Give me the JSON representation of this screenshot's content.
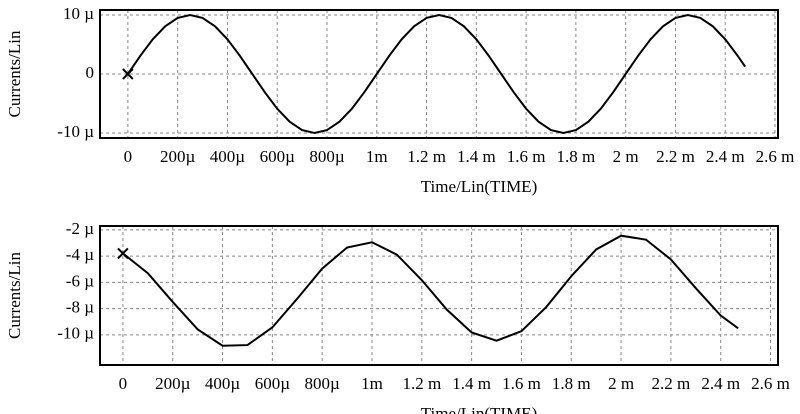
{
  "chart_data": [
    {
      "type": "line",
      "ylabel": "Currents/Lin",
      "xlabel": "Time/Lin(TIME)",
      "color": "#000000",
      "grid": true,
      "xlim": [
        -0.000112,
        0.002612
      ],
      "ylim": [
        -1.085e-05,
        1.085e-05
      ],
      "xticks": [
        0,
        {
          "value": 0.0002,
          "label": "200µ"
        },
        {
          "value": 0.0004,
          "label": "400µ"
        },
        {
          "value": 0.0006,
          "label": "600µ"
        },
        {
          "value": 0.0008,
          "label": "800µ"
        },
        {
          "value": 0.001,
          "label": "1m"
        },
        {
          "value": 0.0012,
          "label": "1.2 m"
        },
        {
          "value": 0.0014,
          "label": "1.4 m"
        },
        {
          "value": 0.0016,
          "label": "1.6 m"
        },
        {
          "value": 0.0018,
          "label": "1.8 m"
        },
        {
          "value": 0.002,
          "label": "2 m"
        },
        {
          "value": 0.0022,
          "label": "2.2 m"
        },
        {
          "value": 0.0024,
          "label": "2.4 m"
        },
        {
          "value": 0.0026,
          "label": "2.6 m"
        }
      ],
      "yticks": [
        {
          "value": 1e-05,
          "label": "10 µ"
        },
        0,
        {
          "value": -1e-05,
          "label": "-10 µ"
        }
      ],
      "x": [
        0,
        5e-05,
        0.0001,
        0.00015,
        0.0002,
        0.00025,
        0.0003,
        0.00035,
        0.0004,
        0.00045,
        0.0005,
        0.00055,
        0.0006,
        0.00065,
        0.0007,
        0.00075,
        0.0008,
        0.00085,
        0.0009,
        0.00095,
        0.001,
        0.00105,
        0.0011,
        0.00115,
        0.0012,
        0.00125,
        0.0013,
        0.00135,
        0.0014,
        0.00145,
        0.0015,
        0.00155,
        0.0016,
        0.00165,
        0.0017,
        0.00175,
        0.0018,
        0.00185,
        0.0019,
        0.00195,
        0.002,
        0.00205,
        0.0021,
        0.00215,
        0.0022,
        0.00225,
        0.0023,
        0.00235,
        0.0024,
        0.00245,
        0.00248
      ],
      "values": [
        0,
        3.09e-06,
        5.88e-06,
        8.09e-06,
        9.51e-06,
        1e-05,
        9.51e-06,
        8.09e-06,
        5.88e-06,
        3.09e-06,
        0,
        -3.09e-06,
        -5.88e-06,
        -8.09e-06,
        -9.51e-06,
        -1e-05,
        -9.51e-06,
        -8.09e-06,
        -5.88e-06,
        -3.09e-06,
        0,
        3.09e-06,
        5.88e-06,
        8.09e-06,
        9.51e-06,
        1e-05,
        9.51e-06,
        8.09e-06,
        5.88e-06,
        3.09e-06,
        0,
        -3.09e-06,
        -5.88e-06,
        -8.09e-06,
        -9.51e-06,
        -1e-05,
        -9.51e-06,
        -8.09e-06,
        -5.88e-06,
        -3.09e-06,
        0,
        3.09e-06,
        5.88e-06,
        8.09e-06,
        9.51e-06,
        1e-05,
        9.51e-06,
        8.09e-06,
        5.88e-06,
        3.09e-06,
        1.25e-06
      ]
    },
    {
      "type": "line",
      "ylabel": "Currents/Lin",
      "xlabel": "Time/Lin(TIME)",
      "color": "#000000",
      "grid": true,
      "xlim": [
        -9.2e-05,
        0.00263
      ],
      "ylim": [
        -1.23e-05,
        -1.7e-06
      ],
      "xticks": [
        0,
        {
          "value": 0.0002,
          "label": "200µ"
        },
        {
          "value": 0.0004,
          "label": "400µ"
        },
        {
          "value": 0.0006,
          "label": "600µ"
        },
        {
          "value": 0.0008,
          "label": "800µ"
        },
        {
          "value": 0.001,
          "label": "1m"
        },
        {
          "value": 0.0012,
          "label": "1.2 m"
        },
        {
          "value": 0.0014,
          "label": "1.4 m"
        },
        {
          "value": 0.0016,
          "label": "1.6 m"
        },
        {
          "value": 0.0018,
          "label": "1.8 m"
        },
        {
          "value": 0.002,
          "label": "2 m"
        },
        {
          "value": 0.0022,
          "label": "2.2 m"
        },
        {
          "value": 0.0024,
          "label": "2.4 m"
        },
        {
          "value": 0.0026,
          "label": "2.6 m"
        }
      ],
      "yticks": [
        {
          "value": -2e-06,
          "label": "-2 µ"
        },
        {
          "value": -4e-06,
          "label": "-4 µ"
        },
        {
          "value": -6e-06,
          "label": "-6 µ"
        },
        {
          "value": -8e-06,
          "label": "-8 µ"
        },
        {
          "value": -1e-05,
          "label": "-10 µ"
        }
      ],
      "x": [
        0,
        0.0001,
        0.0002,
        0.0003,
        0.0004,
        0.0005,
        0.0006,
        0.0007,
        0.0008,
        0.0009,
        0.001,
        0.0011,
        0.0012,
        0.0013,
        0.0014,
        0.0015,
        0.0016,
        0.0017,
        0.0018,
        0.0019,
        0.002,
        0.0021,
        0.0022,
        0.0023,
        0.0024,
        0.00247
      ],
      "values": [
        -3.79e-06,
        -5.3e-06,
        -7.49e-06,
        -9.58e-06,
        -1.083e-05,
        -1.078e-05,
        -9.43e-06,
        -7.24e-06,
        -4.95e-06,
        -3.34e-06,
        -2.94e-06,
        -3.89e-06,
        -5.83e-06,
        -8.07e-06,
        -9.82e-06,
        -1.045e-05,
        -9.72e-06,
        -7.87e-06,
        -5.53e-06,
        -3.49e-06,
        -2.44e-06,
        -2.74e-06,
        -4.25e-06,
        -6.44e-06,
        -8.53e-06,
        -9.5e-06
      ]
    }
  ]
}
